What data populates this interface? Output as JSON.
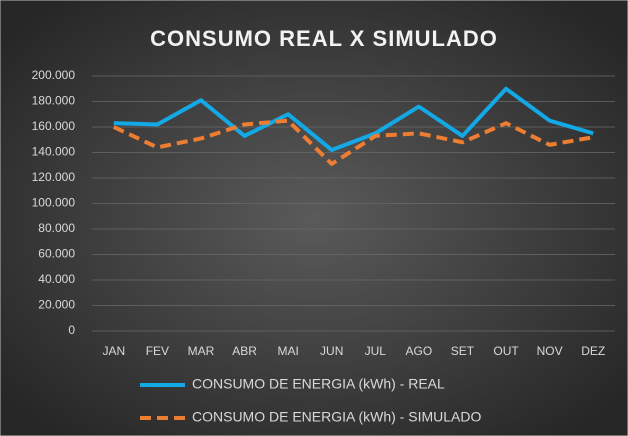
{
  "chart_data": {
    "type": "line",
    "title": "CONSUMO  REAL X SIMULADO",
    "categories": [
      "JAN",
      "FEV",
      "MAR",
      "ABR",
      "MAI",
      "JUN",
      "JUL",
      "AGO",
      "SET",
      "OUT",
      "NOV",
      "DEZ"
    ],
    "series": [
      {
        "name": "CONSUMO DE ENERGIA (kWh) - REAL",
        "color": "#13a9e6",
        "dash": false,
        "values": [
          163000,
          162000,
          181000,
          153000,
          170000,
          142000,
          155000,
          176000,
          153000,
          190000,
          165000,
          155000
        ]
      },
      {
        "name": "CONSUMO DE ENERGIA (kWh) - SIMULADO",
        "color": "#ed7d31",
        "dash": true,
        "values": [
          160000,
          144000,
          151000,
          162000,
          165000,
          131000,
          153000,
          155000,
          148000,
          163000,
          146000,
          152000
        ]
      }
    ],
    "ylim": [
      0,
      200000
    ],
    "yticks": [
      0,
      {
        "value": 20000,
        "label": "20.000"
      },
      {
        "value": 40000,
        "label": "40.000"
      },
      {
        "value": 60000,
        "label": "60.000"
      },
      {
        "value": 80000,
        "label": "80.000"
      },
      {
        "value": 100000,
        "label": "100.000"
      },
      {
        "value": 120000,
        "label": "120.000"
      },
      {
        "value": 140000,
        "label": "140.000"
      },
      {
        "value": 160000,
        "label": "160.000"
      },
      {
        "value": 180000,
        "label": "180.000"
      },
      {
        "value": 200000,
        "label": "200.000"
      }
    ],
    "grid": true,
    "legend": "bottom"
  }
}
